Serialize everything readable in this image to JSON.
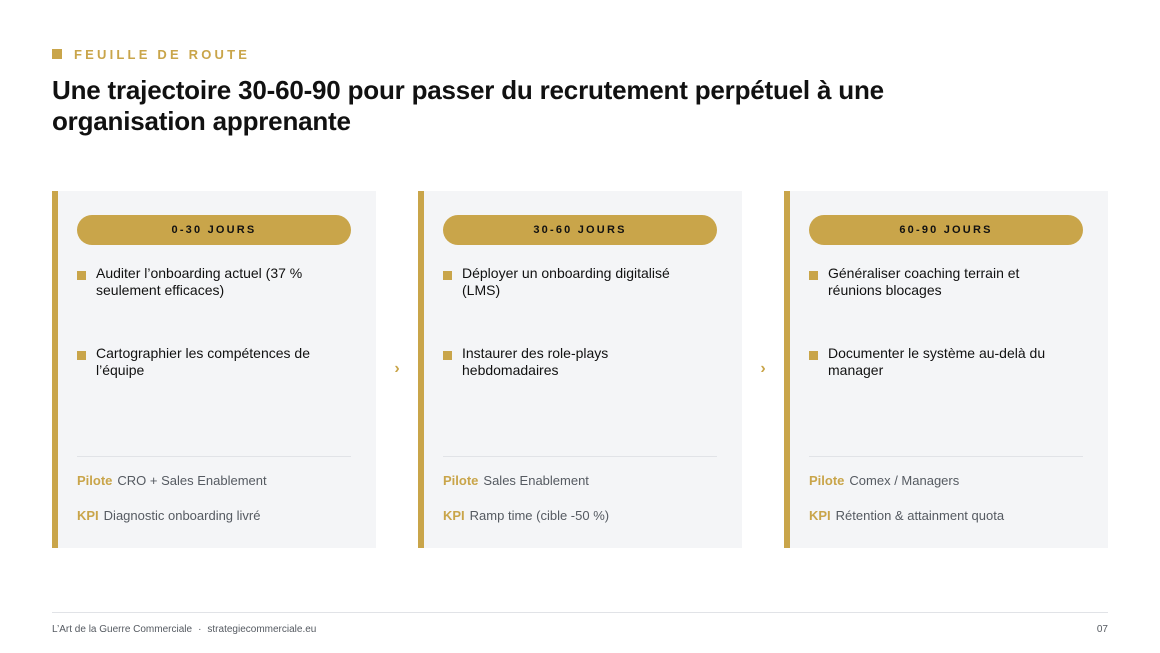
{
  "header": {
    "eyebrow": "FEUILLE DE ROUTE",
    "title": "Une trajectoire 30-60-90 pour passer du recrutement perpétuel à une organisation apprenante"
  },
  "phases": [
    {
      "label": "0-30 JOURS",
      "items": [
        "Auditer l’onboarding actuel (37 % seulement efficaces)",
        "Cartographier les compétences de l’équipe"
      ],
      "pilot_label": "Pilote",
      "pilot_value": "CRO + Sales Enablement",
      "kpi_label": "KPI",
      "kpi_value": "Diagnostic onboarding livré"
    },
    {
      "label": "30-60 JOURS",
      "items": [
        "Déployer un onboarding digitalisé (LMS)",
        "Instaurer des role-plays hebdomadaires"
      ],
      "pilot_label": "Pilote",
      "pilot_value": "Sales Enablement",
      "kpi_label": "KPI",
      "kpi_value": "Ramp time (cible -50 %)"
    },
    {
      "label": "60-90 JOURS",
      "items": [
        "Généraliser coaching terrain et réunions blocages",
        "Documenter le système au-delà du manager"
      ],
      "pilot_label": "Pilote",
      "pilot_value": "Comex / Managers",
      "kpi_label": "KPI",
      "kpi_value": "Rétention & attainment quota"
    }
  ],
  "connector_glyph": "›",
  "footer": {
    "brand": "L’Art de la Guerre Commerciale",
    "separator": "·",
    "site": "strategiecommerciale.eu",
    "page_number": "07"
  },
  "colors": {
    "accent": "#c9a54a",
    "card_background": "#f4f5f7",
    "text": "#111111",
    "muted_text": "#555a61"
  }
}
